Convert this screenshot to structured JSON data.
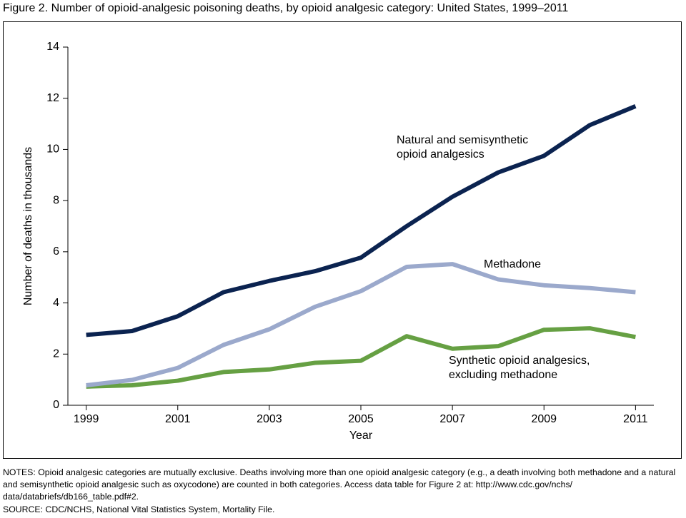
{
  "chart_data": {
    "type": "line",
    "title": "Figure 2. Number of opioid-analgesic poisoning deaths, by opioid analgesic category: United States, 1999–2011",
    "x_label": "Year",
    "y_label": "Number of deaths in thousands",
    "x": [
      1999,
      2000,
      2001,
      2002,
      2003,
      2004,
      2005,
      2006,
      2007,
      2008,
      2009,
      2010,
      2011
    ],
    "xlim": [
      1998.6,
      2011.4
    ],
    "xticks": [
      1999,
      2001,
      2003,
      2005,
      2007,
      2009,
      2011
    ],
    "ylim": [
      0,
      14
    ],
    "yticks": [
      0,
      2,
      4,
      6,
      8,
      10,
      12,
      14
    ],
    "series": [
      {
        "name": "Natural and semisynthetic opioid analgesics",
        "color": "#0b2350",
        "values": [
          2.75,
          2.9,
          3.48,
          4.42,
          4.86,
          5.24,
          5.77,
          7.0,
          8.15,
          9.1,
          9.75,
          10.95,
          11.69
        ]
      },
      {
        "name": "Methadone",
        "color": "#9ba9cc",
        "values": [
          0.78,
          0.99,
          1.46,
          2.36,
          2.97,
          3.85,
          4.46,
          5.41,
          5.52,
          4.92,
          4.69,
          4.58,
          4.42
        ]
      },
      {
        "name": "Synthetic opioid analgesics, excluding methadone",
        "color": "#66a043",
        "values": [
          0.73,
          0.78,
          0.96,
          1.3,
          1.4,
          1.66,
          1.74,
          2.7,
          2.21,
          2.31,
          2.95,
          3.01,
          2.67
        ]
      }
    ],
    "notes": "NOTES: Opioid analgesic categories are mutually exclusive. Deaths involving more than one opioid analgesic category (e.g., a death involving both methadone and a natural and semisynthetic opioid analgesic such as oxycodone) are counted in both categories. Access data table for Figure 2 at: http://www.cdc.gov/nchs/ data/databriefs/db166_table.pdf#2.",
    "source": "SOURCE: CDC/NCHS, National Vital Statistics System, Mortality File."
  }
}
